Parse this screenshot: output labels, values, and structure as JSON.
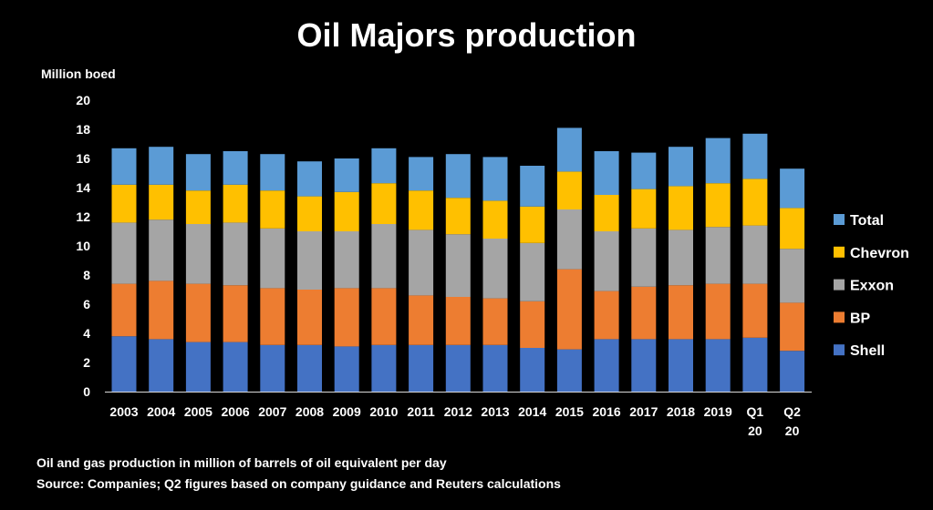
{
  "chart_data": {
    "type": "bar",
    "stacked": true,
    "title": "Oil Majors production",
    "ylabel": "Million boed",
    "xlabel": "",
    "ylim": [
      0,
      20
    ],
    "yticks": [
      0,
      2,
      4,
      6,
      8,
      10,
      12,
      14,
      16,
      18,
      20
    ],
    "grid": false,
    "legend_position": "right",
    "categories": [
      "2003",
      "2004",
      "2005",
      "2006",
      "2007",
      "2008",
      "2009",
      "2010",
      "2011",
      "2012",
      "2013",
      "2014",
      "2015",
      "2016",
      "2017",
      "2018",
      "2019",
      "Q1 20",
      "Q2 20"
    ],
    "series": [
      {
        "name": "Shell",
        "color": "#4472C4",
        "values": [
          3.8,
          3.6,
          3.4,
          3.4,
          3.2,
          3.2,
          3.1,
          3.2,
          3.2,
          3.2,
          3.2,
          3.0,
          2.9,
          3.6,
          3.6,
          3.6,
          3.6,
          3.7,
          2.8
        ]
      },
      {
        "name": "BP",
        "color": "#ED7D31",
        "values": [
          3.6,
          4.0,
          4.0,
          3.9,
          3.9,
          3.8,
          4.0,
          3.9,
          3.4,
          3.3,
          3.2,
          3.2,
          5.5,
          3.3,
          3.6,
          3.7,
          3.8,
          3.7,
          3.3
        ]
      },
      {
        "name": "Exxon",
        "color": "#A5A5A5",
        "values": [
          4.2,
          4.2,
          4.1,
          4.3,
          4.1,
          4.0,
          3.9,
          4.4,
          4.5,
          4.3,
          4.1,
          4.0,
          4.1,
          4.1,
          4.0,
          3.8,
          3.9,
          4.0,
          3.7
        ]
      },
      {
        "name": "Chevron",
        "color": "#FFC000",
        "values": [
          2.6,
          2.4,
          2.3,
          2.6,
          2.6,
          2.4,
          2.7,
          2.8,
          2.7,
          2.5,
          2.6,
          2.5,
          2.6,
          2.5,
          2.7,
          3.0,
          3.0,
          3.2,
          2.8
        ]
      },
      {
        "name": "Total",
        "color": "#5B9BD5",
        "values": [
          2.5,
          2.6,
          2.5,
          2.3,
          2.5,
          2.4,
          2.3,
          2.4,
          2.3,
          3.0,
          3.0,
          2.8,
          3.0,
          3.0,
          2.5,
          2.7,
          3.1,
          3.1,
          2.7
        ]
      }
    ]
  },
  "notes": {
    "line1": "Oil and gas production in million of barrels of oil equivalent per day",
    "line2": "Source: Companies; Q2 figures based on company guidance and Reuters calculations"
  }
}
